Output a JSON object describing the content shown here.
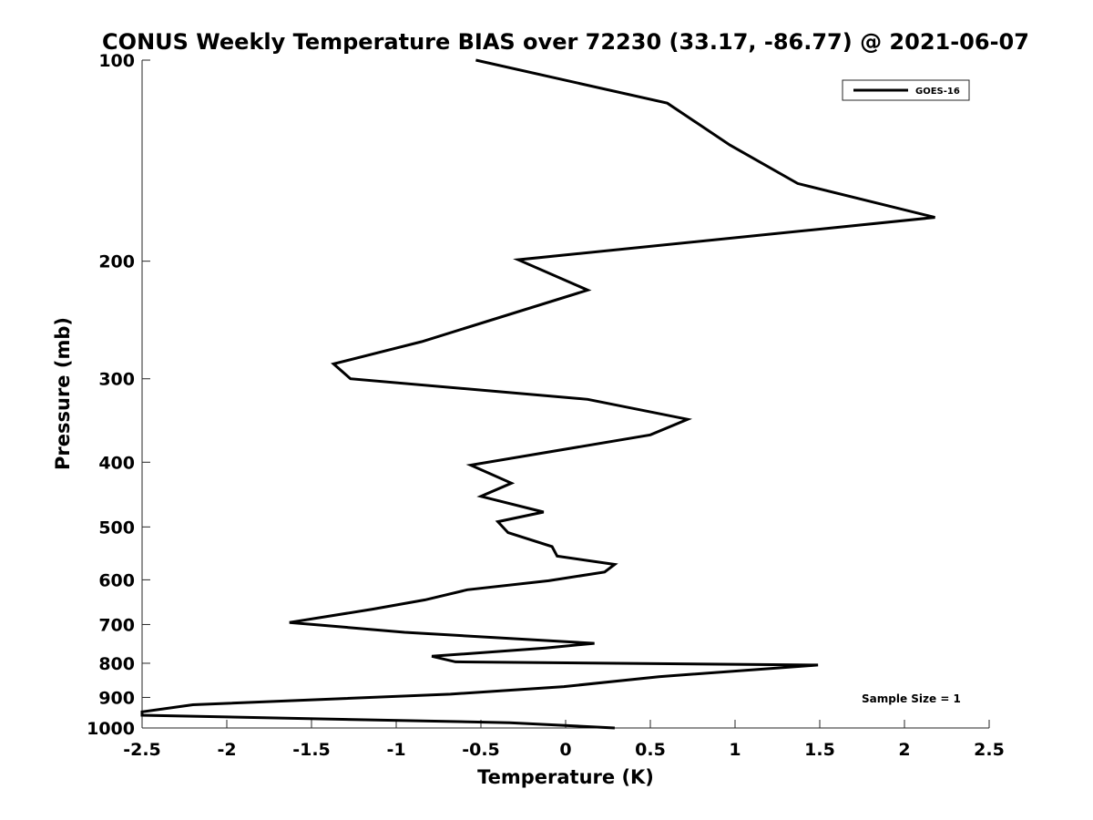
{
  "chart_data": {
    "type": "line",
    "title": "CONUS Weekly Temperature BIAS over 72230 (33.17, -86.77) @ 2021-06-07",
    "xlabel": "Temperature (K)",
    "ylabel": "Pressure (mb)",
    "xlim": [
      -2.5,
      2.5
    ],
    "ylim": [
      100,
      1000
    ],
    "y_scale": "log",
    "y_reversed": true,
    "x_ticks": [
      -2.5,
      -2,
      -1.5,
      -1,
      -0.5,
      0,
      0.5,
      1,
      1.5,
      2,
      2.5
    ],
    "x_tick_labels": [
      "-2.5",
      "-2",
      "-1.5",
      "-1",
      "-0.5",
      "0",
      "0.5",
      "1",
      "1.5",
      "2",
      "2.5"
    ],
    "y_ticks": [
      100,
      200,
      300,
      400,
      500,
      600,
      700,
      800,
      900,
      1000
    ],
    "y_tick_labels": [
      "100",
      "200",
      "300",
      "400",
      "500",
      "600",
      "700",
      "800",
      "900",
      "1000"
    ],
    "grid": false,
    "legend_position": "top-right",
    "annotation": "Sample Size = 1",
    "series": [
      {
        "name": "GOES-16",
        "color": "#000000",
        "x": [
          -0.53,
          0.6,
          0.97,
          1.37,
          2.18,
          -0.28,
          0.13,
          -0.85,
          -1.37,
          -1.27,
          0.13,
          0.72,
          0.5,
          -0.56,
          -0.32,
          -0.5,
          -0.13,
          -0.4,
          -0.34,
          -0.08,
          -0.05,
          0.29,
          0.23,
          -0.1,
          -0.58,
          -0.83,
          -1.14,
          -1.63,
          -0.95,
          0.17,
          -0.12,
          -0.79,
          -0.65,
          1.49,
          0.55,
          -0.01,
          -0.68,
          -2.2,
          -2.5,
          -2.5,
          -0.33,
          0.29
        ],
        "y": [
          100,
          116,
          134,
          153,
          172,
          199,
          221,
          264,
          285,
          300,
          322,
          345,
          364,
          404,
          430,
          450,
          475,
          491,
          510,
          535,
          553,
          569,
          584,
          602,
          621,
          643,
          664,
          695,
          719,
          747,
          759,
          781,
          796,
          805,
          838,
          867,
          890,
          923,
          946,
          957,
          982,
          1000
        ]
      }
    ]
  }
}
